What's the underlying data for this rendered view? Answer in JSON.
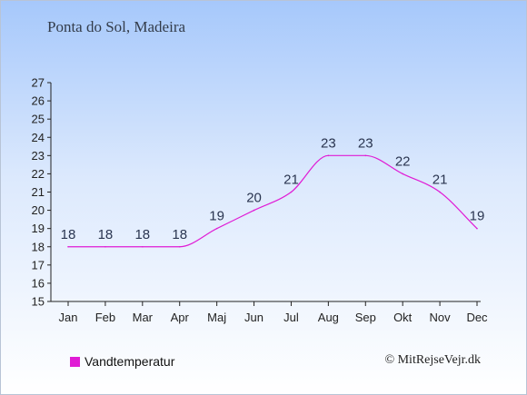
{
  "title": "Ponta do Sol, Madeira",
  "legend": {
    "label": "Vandtemperatur"
  },
  "copyright": "© MitRejseVejr.dk",
  "colors": {
    "line": "#e01cd5",
    "text": "#333c4a",
    "label": "#2a3550",
    "axis": "#222222"
  },
  "chart_data": {
    "type": "line",
    "title": "Ponta do Sol, Madeira",
    "xlabel": "",
    "ylabel": "",
    "categories": [
      "Jan",
      "Feb",
      "Mar",
      "Apr",
      "Maj",
      "Jun",
      "Jul",
      "Aug",
      "Sep",
      "Okt",
      "Nov",
      "Dec"
    ],
    "series": [
      {
        "name": "Vandtemperatur",
        "values": [
          18,
          18,
          18,
          18,
          19,
          20,
          21,
          23,
          23,
          22,
          21,
          19
        ]
      }
    ],
    "ylim": [
      15,
      27
    ],
    "yticks": [
      15,
      16,
      17,
      18,
      19,
      20,
      21,
      22,
      23,
      24,
      25,
      26,
      27
    ],
    "grid": false,
    "legend_position": "bottom-left"
  }
}
